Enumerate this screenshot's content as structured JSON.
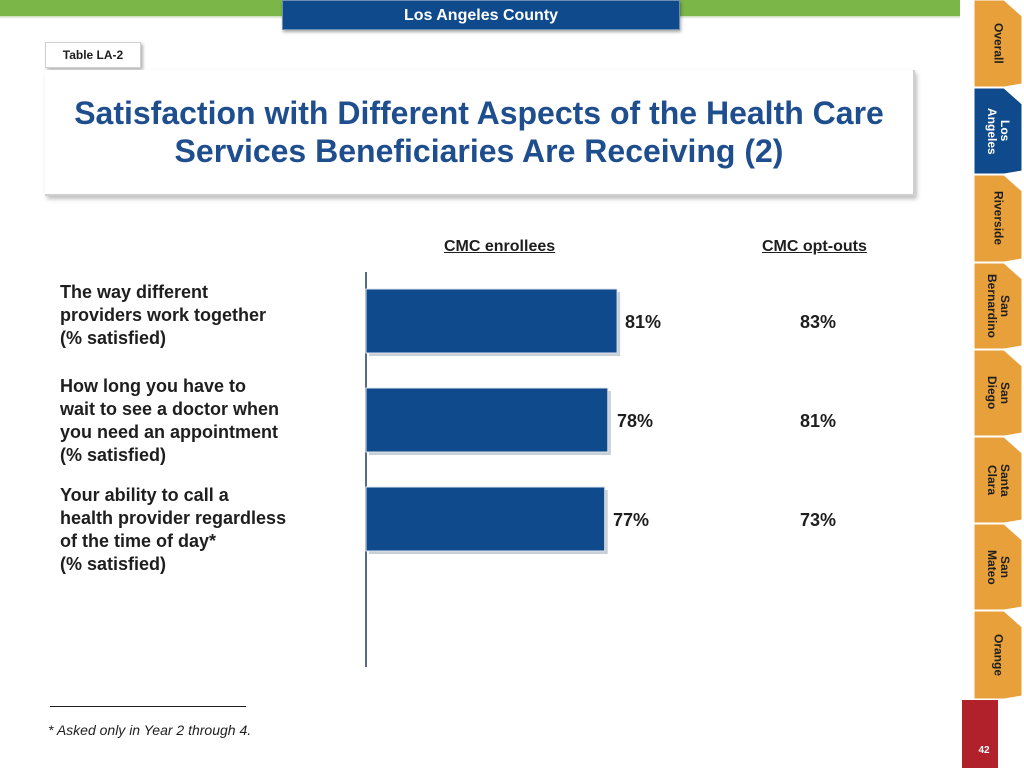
{
  "header": {
    "county": "Los Angeles County",
    "table_label": "Table LA-2",
    "title": "Satisfaction with Different Aspects of the Health Care Services Beneficiaries Are Receiving (2)"
  },
  "columns": {
    "enrollees": "CMC enrollees",
    "optouts": "CMC opt-outs"
  },
  "rows": [
    {
      "label": "The way different\nproviders work together\n(% satisfied)",
      "enrollees": "81%",
      "optouts": "83%"
    },
    {
      "label": "How long you have to\nwait to see a doctor when\nyou need an appointment\n(% satisfied)",
      "enrollees": "78%",
      "optouts": "81%"
    },
    {
      "label": "Your ability to call a\nhealth provider regardless\nof the time of day*\n(% satisfied)",
      "enrollees": "77%",
      "optouts": "73%"
    }
  ],
  "chart_data": {
    "type": "bar",
    "orientation": "horizontal",
    "title": "Satisfaction with Different Aspects of the Health Care Services Beneficiaries Are Receiving (2)",
    "categories": [
      "The way different providers work together (% satisfied)",
      "How long you have to wait to see a doctor when you need an appointment (% satisfied)",
      "Your ability to call a health provider regardless of the time of day* (% satisfied)"
    ],
    "series": [
      {
        "name": "CMC enrollees",
        "values": [
          81,
          78,
          77
        ]
      }
    ],
    "xlim": [
      0,
      100
    ],
    "bar_color": "#0f4a8c"
  },
  "nav": {
    "items": [
      {
        "label": "Overall",
        "active": false
      },
      {
        "label": "Los\nAngeles",
        "active": true
      },
      {
        "label": "Riverside",
        "active": false
      },
      {
        "label": "San\nBernardino",
        "active": false
      },
      {
        "label": "San\nDiego",
        "active": false
      },
      {
        "label": "Santa\nClara",
        "active": false
      },
      {
        "label": "San\nMateo",
        "active": false
      },
      {
        "label": "Orange",
        "active": false
      }
    ]
  },
  "footnote": "* Asked only in Year 2 through 4.",
  "page_number": "42",
  "colors": {
    "accent_green": "#7ab648",
    "navy": "#0f4a8c",
    "title_blue": "#1f4e8f",
    "tab_orange": "#e8a13a",
    "page_red": "#b1212b"
  }
}
